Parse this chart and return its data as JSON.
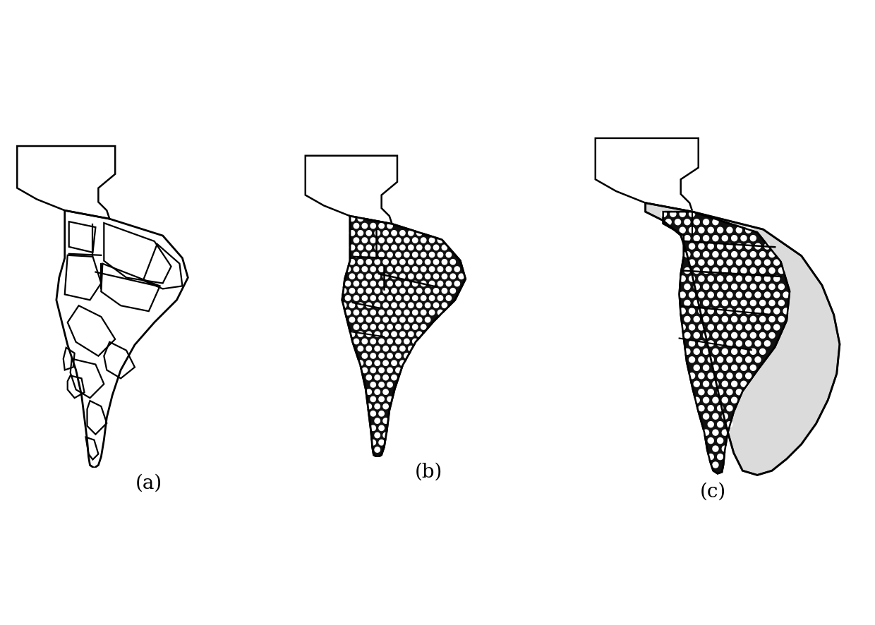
{
  "background_color": "#ffffff",
  "label_a": "(a)",
  "label_b": "(b)",
  "label_c": "(c)",
  "label_fontsize": 20,
  "fig_width": 12.4,
  "fig_height": 8.86,
  "dpi": 100
}
